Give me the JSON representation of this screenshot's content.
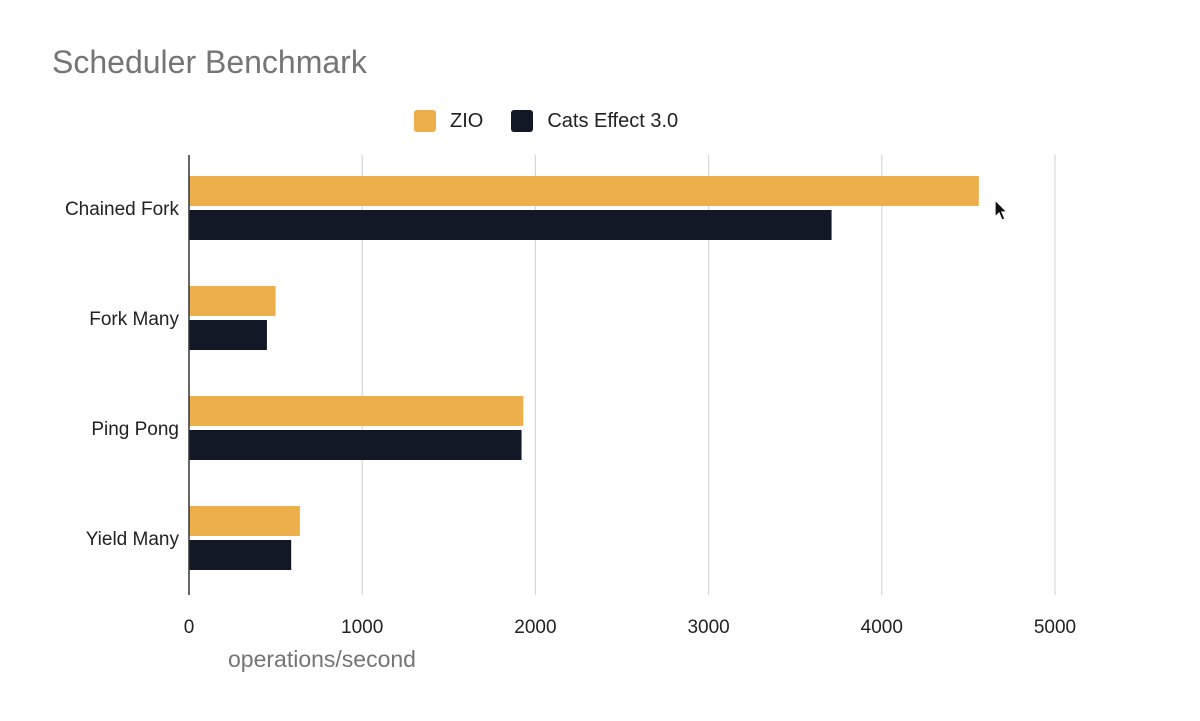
{
  "chart_data": {
    "type": "bar",
    "orientation": "horizontal",
    "title": "Scheduler Benchmark",
    "xlabel": "operations/second",
    "ylabel": "",
    "categories": [
      "Chained Fork",
      "Fork Many",
      "Ping Pong",
      "Yield Many"
    ],
    "series": [
      {
        "name": "ZIO",
        "color": "#EDAE4C",
        "values": [
          4560,
          500,
          1930,
          640
        ]
      },
      {
        "name": "Cats Effect 3.0",
        "color": "#121826",
        "values": [
          3710,
          450,
          1920,
          590
        ]
      }
    ],
    "xlim": [
      0,
      5000
    ],
    "xticks": [
      0,
      1000,
      2000,
      3000,
      4000,
      5000
    ],
    "xtick_labels": [
      "0",
      "1000",
      "2000",
      "3000",
      "4000",
      "5000"
    ],
    "grid": "vertical",
    "legend_position": "top-center"
  }
}
